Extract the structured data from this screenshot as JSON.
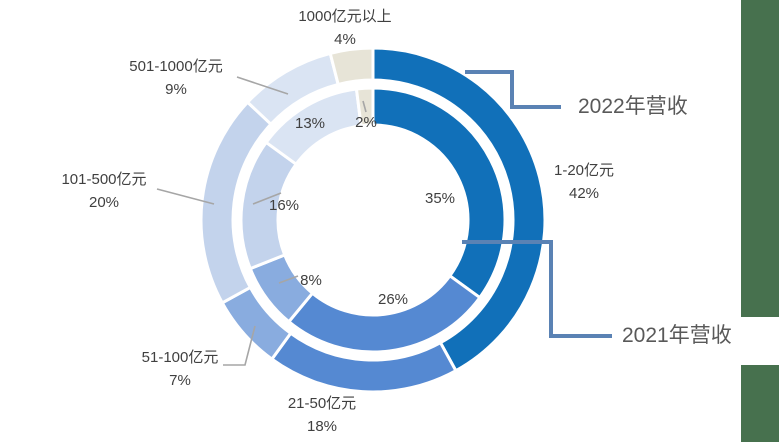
{
  "chart_data": {
    "type": "donut",
    "units": "%",
    "categories": [
      "1-20亿元",
      "21-50亿元",
      "51-100亿元",
      "101-500亿元",
      "501-1000亿元",
      "1000亿元以上"
    ],
    "series": [
      {
        "name": "2022年营收",
        "ring": "outer",
        "values": [
          42,
          18,
          7,
          20,
          9,
          4
        ]
      },
      {
        "name": "2021年营收",
        "ring": "inner",
        "values": [
          35,
          26,
          8,
          16,
          13,
          2
        ]
      }
    ],
    "segment_colors": [
      "#1170B9",
      "#5589D2",
      "#89ACDF",
      "#C3D3EC",
      "#DAE4F3",
      "#E7E4D7"
    ],
    "legend_position": "right-callouts",
    "accent_colors": {
      "connector_blue": "#5A82B4",
      "leader_gray": "#A6A6A6",
      "green_bar": "#47714E"
    }
  }
}
